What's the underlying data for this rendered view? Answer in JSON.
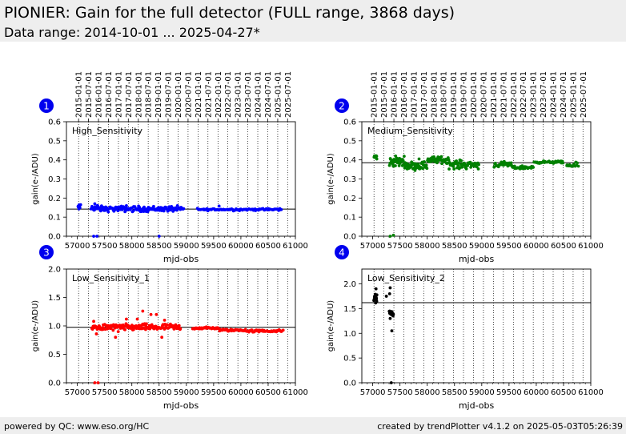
{
  "header": {
    "title": "PIONIER: Gain for the full detector (FULL range, 3868 days)",
    "subtitle": "Data range: 2014-10-01 ... 2025-04-27*"
  },
  "footer": {
    "left": "powered by QC: www.eso.org/HC",
    "right": "created by trendPlotter v4.1.2 on 2025-05-03T05:26:39"
  },
  "date_ticks": {
    "labels": [
      "2015-01-01",
      "2015-07-01",
      "2016-01-01",
      "2016-07-01",
      "2017-01-01",
      "2017-07-01",
      "2018-01-01",
      "2018-07-01",
      "2019-01-01",
      "2019-07-01",
      "2020-01-01",
      "2020-07-01",
      "2021-01-01",
      "2021-07-01",
      "2022-01-01",
      "2022-07-01",
      "2023-01-01",
      "2023-07-01",
      "2024-01-01",
      "2024-07-01",
      "2025-01-01",
      "2025-07-01"
    ],
    "mjd": [
      57023,
      57204,
      57388,
      57570,
      57754,
      57935,
      58119,
      58300,
      58484,
      58665,
      58849,
      59031,
      59215,
      59396,
      59580,
      59761,
      59945,
      60126,
      60310,
      60492,
      60676,
      60857
    ]
  },
  "chart_data": [
    {
      "type": "scatter",
      "badge": "1",
      "panel_label": "High_Sensitivity",
      "xlabel": "mjd-obs",
      "ylabel": "gain(e-/ADU)",
      "xlim": [
        56800,
        61000
      ],
      "ylim": [
        0,
        0.6
      ],
      "xticks": [
        57000,
        57500,
        58000,
        58500,
        59000,
        59500,
        60000,
        60500,
        61000
      ],
      "yticks": [
        0.0,
        0.1,
        0.2,
        0.3,
        0.4,
        0.5,
        0.6
      ],
      "ytick_labels": [
        "0.0",
        "0.1",
        "0.2",
        "0.3",
        "0.4",
        "0.5",
        "0.6"
      ],
      "reference_line": 0.142,
      "color": "#0000ff",
      "series": [
        {
          "segments": [
            [
              57010,
              57050,
              0.15,
              0.01,
              8
            ],
            [
              57250,
              57390,
              0.148,
              0.012,
              18
            ],
            [
              57400,
              58950,
              0.143,
              0.01,
              130
            ],
            [
              59200,
              60750,
              0.14,
              0.004,
              90
            ]
          ],
          "extra": [
            [
              57060,
              0.165
            ],
            [
              57300,
              0.0
            ],
            [
              57360,
              0.0
            ],
            [
              57320,
              0.17
            ],
            [
              58500,
              0.0
            ],
            [
              59600,
              0.158
            ],
            [
              57900,
              0.16
            ]
          ]
        }
      ]
    },
    {
      "type": "scatter",
      "badge": "2",
      "panel_label": "Medium_Sensitivity",
      "xlabel": "mjd-obs",
      "ylabel": "gain(e-/ADU)",
      "xlim": [
        56800,
        61000
      ],
      "ylim": [
        0,
        0.6
      ],
      "xticks": [
        57000,
        57500,
        58000,
        58500,
        59000,
        59500,
        60000,
        60500,
        61000
      ],
      "yticks": [
        0.0,
        0.1,
        0.2,
        0.3,
        0.4,
        0.5,
        0.6
      ],
      "ytick_labels": [
        "0.0",
        "0.1",
        "0.2",
        "0.3",
        "0.4",
        "0.5",
        "0.6"
      ],
      "reference_line": 0.385,
      "color": "#008000",
      "series": [
        {
          "segments": [
            [
              57020,
              57080,
              0.415,
              0.01,
              8
            ],
            [
              57300,
              57600,
              0.39,
              0.018,
              35
            ],
            [
              57600,
              58000,
              0.37,
              0.015,
              45
            ],
            [
              58000,
              58400,
              0.4,
              0.012,
              50
            ],
            [
              58400,
              58950,
              0.375,
              0.015,
              55
            ],
            [
              59220,
              59550,
              0.375,
              0.01,
              25
            ],
            [
              59550,
              59950,
              0.36,
              0.006,
              30
            ],
            [
              59950,
              60500,
              0.388,
              0.004,
              40
            ],
            [
              60550,
              60780,
              0.37,
              0.01,
              15
            ]
          ],
          "extra": [
            [
              57320,
              0.0
            ],
            [
              57380,
              0.005
            ],
            [
              57420,
              0.42
            ],
            [
              57850,
              0.405
            ]
          ]
        }
      ]
    },
    {
      "type": "scatter",
      "badge": "3",
      "panel_label": "Low_Sensitivity_1",
      "xlabel": "mjd-obs",
      "ylabel": "gain(e-/ADU)",
      "xlim": [
        56800,
        61000
      ],
      "ylim": [
        0,
        2.0
      ],
      "xticks": [
        57000,
        57500,
        58000,
        58500,
        59000,
        59500,
        60000,
        60500,
        61000
      ],
      "yticks": [
        0.0,
        0.5,
        1.0,
        1.5,
        2.0
      ],
      "ytick_labels": [
        "0.0",
        "0.5",
        "1.0",
        "1.5",
        "2.0"
      ],
      "reference_line": 0.975,
      "color": "#ff0000",
      "series": [
        {
          "segments": [
            [
              57260,
              58900,
              0.975,
              0.04,
              160
            ],
            [
              59100,
              59600,
              0.96,
              0.015,
              30
            ],
            [
              59600,
              60100,
              0.925,
              0.015,
              30
            ],
            [
              60100,
              60780,
              0.91,
              0.015,
              40
            ]
          ],
          "extra": [
            [
              57300,
              1.08
            ],
            [
              57350,
              0.86
            ],
            [
              57700,
              0.8
            ],
            [
              57750,
              0.9
            ],
            [
              57900,
              1.12
            ],
            [
              58100,
              1.12
            ],
            [
              58200,
              1.26
            ],
            [
              58350,
              1.2
            ],
            [
              58450,
              1.2
            ],
            [
              58550,
              0.8
            ],
            [
              58600,
              1.1
            ],
            [
              57320,
              0.0
            ],
            [
              57380,
              0.0
            ]
          ]
        }
      ]
    },
    {
      "type": "scatter",
      "badge": "4",
      "panel_label": "Low_Sensitivity_2",
      "xlabel": "mjd-obs",
      "ylabel": "gain(e-/ADU)",
      "xlim": [
        56800,
        61000
      ],
      "ylim": [
        0,
        2.3
      ],
      "xticks": [
        57000,
        57500,
        58000,
        58500,
        59000,
        59500,
        60000,
        60500,
        61000
      ],
      "yticks": [
        0.0,
        0.5,
        1.0,
        1.5,
        2.0
      ],
      "ytick_labels": [
        "0.0",
        "0.5",
        "1.0",
        "1.5",
        "2.0"
      ],
      "reference_line": 1.62,
      "color": "#000000",
      "series": [
        {
          "segments": [
            [
              57020,
              57080,
              1.7,
              0.06,
              14
            ],
            [
              57300,
              57380,
              1.4,
              0.05,
              14
            ]
          ],
          "extra": [
            [
              57060,
              1.9
            ],
            [
              57250,
              1.75
            ],
            [
              57320,
              1.92
            ],
            [
              57350,
              1.05
            ],
            [
              57320,
              1.3
            ],
            [
              57310,
              1.8
            ],
            [
              57340,
              0.0
            ]
          ]
        }
      ]
    }
  ]
}
